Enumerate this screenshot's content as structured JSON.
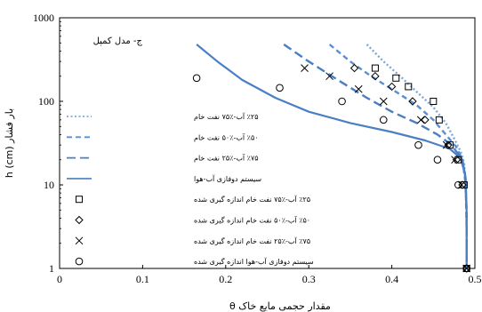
{
  "chart_data": {
    "type": "line",
    "title": "",
    "inset_label": "ج- مدل کمپل",
    "xlabel": "θ مقدار حجمی مایع خاک",
    "ylabel": "h (cm) بار فشار",
    "xlim": [
      0,
      0.5
    ],
    "ylim": [
      1,
      1000
    ],
    "yscale": "log",
    "x_ticks": [
      "0",
      "0.1",
      "0.2",
      "0.3",
      "0.4",
      "0.5"
    ],
    "y_ticks": [
      "1",
      "10",
      "100",
      "1000"
    ],
    "grid": false,
    "legend_position": "left",
    "series": [
      {
        "name": "٪۲۵ آب-٪۷۵ نفت خام",
        "kind": "line",
        "style": "dotted",
        "color": "#7ea6d8",
        "points": [
          [
            0.37,
            480
          ],
          [
            0.39,
            300
          ],
          [
            0.41,
            200
          ],
          [
            0.43,
            130
          ],
          [
            0.45,
            85
          ],
          [
            0.465,
            55
          ],
          [
            0.475,
            36
          ],
          [
            0.483,
            25
          ],
          [
            0.487,
            18
          ],
          [
            0.489,
            10
          ],
          [
            0.49,
            3
          ],
          [
            0.49,
            1
          ]
        ]
      },
      {
        "name": "٪۵۰ آب-٪۵۰ نفت خام",
        "kind": "line",
        "style": "dashed",
        "color": "#5b8fd0",
        "points": [
          [
            0.325,
            480
          ],
          [
            0.35,
            300
          ],
          [
            0.375,
            200
          ],
          [
            0.405,
            130
          ],
          [
            0.43,
            90
          ],
          [
            0.45,
            60
          ],
          [
            0.465,
            40
          ],
          [
            0.478,
            28
          ],
          [
            0.485,
            20
          ],
          [
            0.489,
            10
          ],
          [
            0.49,
            3
          ],
          [
            0.49,
            1
          ]
        ]
      },
      {
        "name": "٪۷۵ آب-٪۲۵ نفت خام",
        "kind": "line",
        "style": "longdash",
        "color": "#4a7fc4",
        "points": [
          [
            0.27,
            480
          ],
          [
            0.3,
            300
          ],
          [
            0.335,
            180
          ],
          [
            0.37,
            110
          ],
          [
            0.4,
            75
          ],
          [
            0.43,
            55
          ],
          [
            0.455,
            40
          ],
          [
            0.472,
            30
          ],
          [
            0.482,
            22
          ],
          [
            0.488,
            14
          ],
          [
            0.49,
            5
          ],
          [
            0.49,
            1
          ]
        ]
      },
      {
        "name": "سیستم دوفازی آب-هوا",
        "kind": "line",
        "style": "solid",
        "color": "#4a7fc4",
        "points": [
          [
            0.165,
            480
          ],
          [
            0.19,
            300
          ],
          [
            0.22,
            180
          ],
          [
            0.26,
            110
          ],
          [
            0.3,
            75
          ],
          [
            0.35,
            55
          ],
          [
            0.4,
            43
          ],
          [
            0.44,
            34
          ],
          [
            0.47,
            27
          ],
          [
            0.485,
            20
          ],
          [
            0.489,
            12
          ],
          [
            0.49,
            5
          ],
          [
            0.49,
            1
          ]
        ]
      },
      {
        "name": "٪۲۵ آب-٪۷۵ نفت خام اندازه گیری شده",
        "kind": "marker",
        "marker": "square",
        "color": "#000000",
        "points": [
          [
            0.38,
            250
          ],
          [
            0.405,
            190
          ],
          [
            0.42,
            150
          ],
          [
            0.45,
            100
          ],
          [
            0.457,
            60
          ],
          [
            0.47,
            30
          ],
          [
            0.48,
            20
          ],
          [
            0.487,
            10
          ],
          [
            0.49,
            1
          ]
        ]
      },
      {
        "name": "٪۵۰ آب-٪۵۰ نفت خام اندازه گیری شده",
        "kind": "marker",
        "marker": "diamond",
        "color": "#000000",
        "points": [
          [
            0.355,
            250
          ],
          [
            0.38,
            200
          ],
          [
            0.4,
            150
          ],
          [
            0.425,
            100
          ],
          [
            0.44,
            60
          ],
          [
            0.468,
            30
          ],
          [
            0.478,
            20
          ],
          [
            0.485,
            10
          ],
          [
            0.49,
            1
          ]
        ]
      },
      {
        "name": "٪۷۵ آب-٪۲۵ نفت خام اندازه گیری شده",
        "kind": "marker",
        "marker": "x",
        "color": "#000000",
        "points": [
          [
            0.295,
            250
          ],
          [
            0.325,
            200
          ],
          [
            0.36,
            140
          ],
          [
            0.39,
            100
          ],
          [
            0.435,
            60
          ],
          [
            0.466,
            30
          ],
          [
            0.476,
            20
          ],
          [
            0.484,
            10
          ],
          [
            0.49,
            1
          ]
        ]
      },
      {
        "name": "سیستم دوفازی آب-هوا اندازه گیری شده",
        "kind": "marker",
        "marker": "circle",
        "color": "#000000",
        "points": [
          [
            0.165,
            190
          ],
          [
            0.265,
            145
          ],
          [
            0.34,
            100
          ],
          [
            0.39,
            60
          ],
          [
            0.432,
            30
          ],
          [
            0.455,
            20
          ],
          [
            0.48,
            10
          ],
          [
            0.49,
            1
          ]
        ]
      }
    ]
  }
}
